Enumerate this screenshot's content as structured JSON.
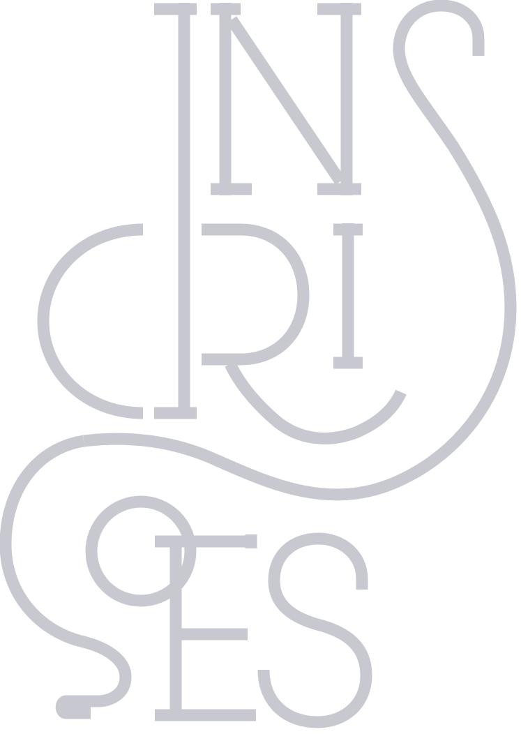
{
  "logo": {
    "wordmark": "INSCRIÇÕES",
    "color": "#c8c9d0",
    "icon": "monogram-logo"
  }
}
